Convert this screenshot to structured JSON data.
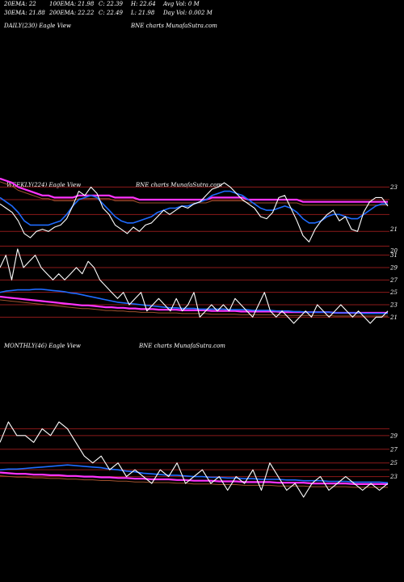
{
  "header": {
    "row1": [
      "20EMA: 22",
      "100EMA: 21.98",
      "C: 22.39",
      "H: 22.64",
      "Avg Vol: 0  M"
    ],
    "row2": [
      "30EMA: 21.88",
      "200EMA: 22.22",
      "C: 22.49",
      "L: 21.98",
      "Day Vol: 0.002  M"
    ],
    "row3": [
      "DAILY(230) Eagle  View",
      "BNE charts MunafaSutra.com"
    ]
  },
  "weekly": {
    "title": "WEEKLY(224) Eagle  View",
    "site": "BNE charts MunafaSutra.com"
  },
  "monthly": {
    "title": "MONTHLY(46) Eagle  View",
    "site": "BNE charts MunafaSutra.com"
  },
  "colors": {
    "price": "#ffffff",
    "ema_blue": "#1e6bff",
    "ema_slow": "#ff33ff",
    "ema_brown": "#a0522d",
    "level": "#8b1a1a"
  },
  "chart_data": [
    {
      "type": "line",
      "name": "daily",
      "yticks": [
        "23",
        "21",
        "20"
      ],
      "levels": [
        23,
        22.4,
        21.7,
        20.9,
        20.2
      ],
      "ylim": [
        19.8,
        24.2
      ],
      "series": [
        {
          "role": "price",
          "values": [
            22.2,
            22.0,
            21.8,
            21.4,
            20.8,
            20.6,
            20.9,
            21.0,
            20.9,
            21.1,
            21.2,
            21.5,
            22.1,
            22.8,
            22.6,
            23.0,
            22.7,
            22.0,
            21.7,
            21.2,
            21.0,
            20.8,
            21.1,
            20.9,
            21.2,
            21.3,
            21.6,
            21.9,
            21.7,
            21.9,
            22.1,
            22.0,
            22.2,
            22.3,
            22.6,
            22.9,
            23.0,
            23.2,
            23.0,
            22.7,
            22.4,
            22.2,
            22.0,
            21.6,
            21.5,
            21.8,
            22.5,
            22.6,
            22.0,
            21.4,
            20.7,
            20.4,
            21.0,
            21.4,
            21.7,
            21.9,
            21.4,
            21.6,
            21.0,
            20.9,
            21.8,
            22.3,
            22.5,
            22.5,
            22.1
          ]
        },
        {
          "role": "ema-fast",
          "values": [
            22.5,
            22.3,
            22.1,
            21.8,
            21.4,
            21.2,
            21.2,
            21.2,
            21.2,
            21.3,
            21.4,
            21.7,
            22.1,
            22.4,
            22.5,
            22.6,
            22.5,
            22.2,
            21.9,
            21.6,
            21.4,
            21.3,
            21.3,
            21.4,
            21.5,
            21.6,
            21.8,
            21.9,
            22.0,
            22.0,
            22.1,
            22.1,
            22.2,
            22.3,
            22.4,
            22.6,
            22.7,
            22.8,
            22.8,
            22.7,
            22.6,
            22.4,
            22.2,
            22.0,
            21.9,
            21.9,
            22.0,
            22.1,
            22.0,
            21.8,
            21.5,
            21.3,
            21.3,
            21.4,
            21.6,
            21.7,
            21.7,
            21.6,
            21.5,
            21.5,
            21.7,
            21.9,
            22.1,
            22.2,
            22.2
          ]
        },
        {
          "role": "ema-200",
          "values": [
            23.4,
            23.3,
            23.2,
            23.0,
            22.9,
            22.8,
            22.7,
            22.6,
            22.6,
            22.5,
            22.5,
            22.5,
            22.5,
            22.6,
            22.6,
            22.6,
            22.6,
            22.6,
            22.6,
            22.5,
            22.5,
            22.5,
            22.5,
            22.4,
            22.4,
            22.4,
            22.4,
            22.4,
            22.4,
            22.4,
            22.4,
            22.4,
            22.4,
            22.4,
            22.4,
            22.5,
            22.5,
            22.5,
            22.5,
            22.5,
            22.5,
            22.4,
            22.4,
            22.4,
            22.4,
            22.4,
            22.4,
            22.4,
            22.4,
            22.4,
            22.3,
            22.3,
            22.3,
            22.3,
            22.3,
            22.3,
            22.3,
            22.3,
            22.3,
            22.3,
            22.3,
            22.3,
            22.3,
            22.3,
            22.3
          ]
        }
      ]
    },
    {
      "type": "line",
      "name": "weekly",
      "yticks": [
        "31",
        "29",
        "27",
        "25",
        "23",
        "21"
      ],
      "levels": [
        31,
        29,
        27,
        25,
        23,
        21
      ],
      "ylim": [
        20,
        32
      ],
      "series": [
        {
          "role": "price",
          "values": [
            29,
            31,
            27,
            32,
            29,
            30,
            31,
            29,
            28,
            27,
            28,
            27,
            28,
            29,
            28,
            30,
            29,
            27,
            26,
            25,
            24,
            25,
            23,
            24,
            25,
            22,
            23,
            24,
            23,
            22,
            24,
            22,
            23,
            25,
            21,
            22,
            23,
            22,
            23,
            22,
            24,
            23,
            22,
            21,
            23,
            25,
            22,
            21,
            22,
            21,
            20,
            21,
            22,
            21,
            23,
            22,
            21,
            22,
            23,
            22,
            21,
            22,
            21,
            20,
            21,
            21,
            22
          ]
        },
        {
          "role": "ema-fast",
          "values": [
            25,
            25.2,
            25.3,
            25.4,
            25.4,
            25.4,
            25.5,
            25.5,
            25.4,
            25.3,
            25.2,
            25.1,
            24.9,
            24.8,
            24.6,
            24.4,
            24.2,
            24.0,
            23.8,
            23.6,
            23.4,
            23.3,
            23.2,
            23.1,
            23.0,
            22.9,
            22.8,
            22.7,
            22.6,
            22.5,
            22.5,
            22.4,
            22.4,
            22.4,
            22.3,
            22.3,
            22.3,
            22.3,
            22.3,
            22.2,
            22.2,
            22.2,
            22.2,
            22.1,
            22.1,
            22.1,
            22.1,
            22.0,
            22.0,
            22.0,
            21.9,
            21.9,
            21.8,
            21.8,
            21.8,
            21.8,
            21.8,
            21.7,
            21.7,
            21.7,
            21.7,
            21.7,
            21.6,
            21.6,
            21.6,
            21.6,
            21.6
          ]
        },
        {
          "role": "ema-200",
          "values": [
            24.3,
            24.2,
            24.1,
            24.0,
            23.9,
            23.8,
            23.7,
            23.6,
            23.5,
            23.4,
            23.3,
            23.2,
            23.1,
            23.0,
            22.9,
            22.9,
            22.8,
            22.7,
            22.6,
            22.6,
            22.5,
            22.5,
            22.4,
            22.4,
            22.3,
            22.3,
            22.3,
            22.2,
            22.2,
            22.2,
            22.2,
            22.1,
            22.1,
            22.1,
            22.1,
            22.1,
            22.0,
            22.0,
            22.0,
            22.0,
            22.0,
            21.9,
            21.9,
            21.9,
            21.9,
            21.9,
            21.9,
            21.9,
            21.8,
            21.8,
            21.8,
            21.8,
            21.8,
            21.8,
            21.8,
            21.8,
            21.8,
            21.7,
            21.7,
            21.7,
            21.7,
            21.7,
            21.7,
            21.7,
            21.7,
            21.7,
            21.7
          ]
        }
      ]
    },
    {
      "type": "line",
      "name": "monthly",
      "yticks": [
        "29",
        "27",
        "25",
        "23"
      ],
      "levels": [
        30,
        29,
        27,
        25,
        24,
        23
      ],
      "ylim": [
        20,
        33
      ],
      "series": [
        {
          "role": "price",
          "values": [
            28,
            31,
            29,
            29,
            28,
            30,
            29,
            31,
            30,
            28,
            26,
            25,
            26,
            24,
            25,
            23,
            24,
            23,
            22,
            24,
            23,
            25,
            22,
            23,
            24,
            22,
            23,
            21,
            23,
            22,
            24,
            21,
            25,
            23,
            21,
            22,
            20,
            22,
            23,
            21,
            22,
            23,
            22,
            21,
            22,
            21,
            22
          ]
        },
        {
          "role": "ema-fast",
          "values": [
            24.0,
            24.1,
            24.1,
            24.2,
            24.3,
            24.4,
            24.5,
            24.6,
            24.7,
            24.6,
            24.5,
            24.4,
            24.3,
            24.1,
            24.0,
            23.8,
            23.7,
            23.5,
            23.4,
            23.3,
            23.2,
            23.2,
            23.1,
            23.0,
            23.0,
            22.9,
            22.9,
            22.8,
            22.8,
            22.7,
            22.7,
            22.6,
            22.6,
            22.6,
            22.5,
            22.5,
            22.4,
            22.4,
            22.4,
            22.3,
            22.3,
            22.3,
            22.2,
            22.2,
            22.2,
            22.2,
            22.1
          ]
        },
        {
          "role": "ema-200",
          "values": [
            23.6,
            23.5,
            23.4,
            23.4,
            23.3,
            23.3,
            23.2,
            23.2,
            23.1,
            23.1,
            23.0,
            23.0,
            22.9,
            22.9,
            22.8,
            22.8,
            22.7,
            22.7,
            22.6,
            22.6,
            22.6,
            22.5,
            22.5,
            22.4,
            22.4,
            22.4,
            22.3,
            22.3,
            22.3,
            22.2,
            22.2,
            22.2,
            22.2,
            22.1,
            22.1,
            22.1,
            22.1,
            22.0,
            22.0,
            22.0,
            22.0,
            22.0,
            21.9,
            21.9,
            21.9,
            21.9,
            21.9
          ]
        }
      ]
    }
  ]
}
